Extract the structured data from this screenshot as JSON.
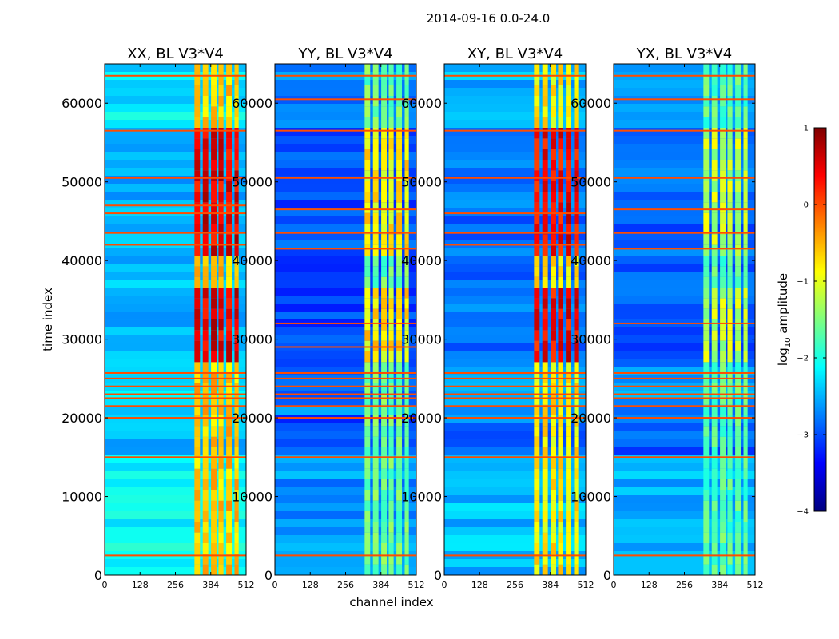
{
  "figure": {
    "title": "2014-09-16 0.0-24.0",
    "xlabel": "channel index",
    "ylabel": "time index",
    "colorbar_label_base": "log",
    "colorbar_label_sub": "10",
    "colorbar_label_rest": " amplitude",
    "colorbar_min": -4,
    "colorbar_max": 1,
    "colorbar_ticks": [
      "1",
      "0",
      "−1",
      "−2",
      "−3",
      "−4"
    ],
    "colormap": [
      "#00007f",
      "#0000ff",
      "#007fff",
      "#00ffff",
      "#7fff7f",
      "#ffff00",
      "#ff7f00",
      "#ff0000",
      "#7f0000"
    ]
  },
  "chart_data": [
    {
      "type": "heatmap",
      "title": "XX, BL V3*V4",
      "xlim": [
        0,
        512
      ],
      "ylim": [
        0,
        65000
      ],
      "xticks": [
        "0",
        "128",
        "256",
        "384",
        "512"
      ],
      "yticks": [
        "0",
        "10000",
        "20000",
        "30000",
        "40000",
        "50000",
        "60000"
      ],
      "ytick_values": [
        0,
        10000,
        20000,
        30000,
        40000,
        50000,
        60000
      ],
      "xtick_values": [
        0,
        128,
        256,
        384,
        512
      ],
      "signal_columns": [
        [
          325,
          345
        ],
        [
          355,
          375
        ],
        [
          385,
          405
        ],
        [
          412,
          430
        ],
        [
          440,
          460
        ],
        [
          470,
          485
        ]
      ],
      "base_level": -2.5,
      "signal_level": -0.6,
      "hot_level": 0.5,
      "rfi_rows": [
        2500,
        15000,
        20000,
        21500,
        22500,
        23000,
        24000,
        25000,
        25700,
        42000,
        43500,
        46000,
        47000,
        50500,
        56500,
        63500
      ]
    },
    {
      "type": "heatmap",
      "title": "YY, BL V3*V4",
      "xlim": [
        0,
        512
      ],
      "ylim": [
        0,
        65000
      ],
      "xticks": [
        "0",
        "128",
        "256",
        "384",
        "512"
      ],
      "yticks": [
        "0",
        "10000",
        "20000",
        "30000",
        "40000",
        "50000",
        "60000"
      ],
      "ytick_values": [
        0,
        10000,
        20000,
        30000,
        40000,
        50000,
        60000
      ],
      "xtick_values": [
        0,
        128,
        256,
        384,
        512
      ],
      "signal_columns": [
        [
          325,
          345
        ],
        [
          355,
          375
        ],
        [
          385,
          405
        ],
        [
          412,
          430
        ],
        [
          440,
          460
        ],
        [
          470,
          485
        ]
      ],
      "base_level": -3.0,
      "signal_level": -1.6,
      "hot_level": -0.8,
      "rfi_rows": [
        2500,
        15000,
        20000,
        21500,
        22500,
        23000,
        24000,
        25000,
        25700,
        29000,
        32000,
        41500,
        43500,
        46500,
        50500,
        56500,
        60500,
        63500
      ]
    },
    {
      "type": "heatmap",
      "title": "XY, BL V3*V4",
      "xlim": [
        0,
        512
      ],
      "ylim": [
        0,
        65000
      ],
      "xticks": [
        "0",
        "128",
        "256",
        "384",
        "512"
      ],
      "yticks": [
        "0",
        "10000",
        "20000",
        "30000",
        "40000",
        "50000",
        "60000"
      ],
      "ytick_values": [
        0,
        10000,
        20000,
        30000,
        40000,
        50000,
        60000
      ],
      "xtick_values": [
        0,
        128,
        256,
        384,
        512
      ],
      "signal_columns": [
        [
          325,
          345
        ],
        [
          355,
          375
        ],
        [
          385,
          405
        ],
        [
          412,
          430
        ],
        [
          440,
          460
        ],
        [
          470,
          485
        ]
      ],
      "base_level": -2.8,
      "signal_level": -0.8,
      "hot_level": 0.4,
      "rfi_rows": [
        2500,
        15000,
        20000,
        21500,
        22500,
        23000,
        24000,
        25000,
        25700,
        42000,
        43500,
        46000,
        50500,
        56500,
        63500
      ]
    },
    {
      "type": "heatmap",
      "title": "YX, BL V3*V4",
      "xlim": [
        0,
        512
      ],
      "ylim": [
        0,
        65000
      ],
      "xticks": [
        "0",
        "128",
        "256",
        "384",
        "512"
      ],
      "yticks": [
        "0",
        "10000",
        "20000",
        "30000",
        "40000",
        "50000",
        "60000"
      ],
      "ytick_values": [
        0,
        10000,
        20000,
        30000,
        40000,
        50000,
        60000
      ],
      "xtick_values": [
        0,
        128,
        256,
        384,
        512
      ],
      "signal_columns": [
        [
          325,
          345
        ],
        [
          355,
          375
        ],
        [
          385,
          405
        ],
        [
          412,
          430
        ],
        [
          440,
          460
        ],
        [
          470,
          485
        ]
      ],
      "base_level": -2.9,
      "signal_level": -1.7,
      "hot_level": -1.2,
      "rfi_rows": [
        2500,
        15000,
        20000,
        21500,
        22500,
        23000,
        24000,
        25000,
        25700,
        32000,
        41500,
        43500,
        46500,
        50500,
        56500,
        60500,
        63500
      ]
    }
  ]
}
